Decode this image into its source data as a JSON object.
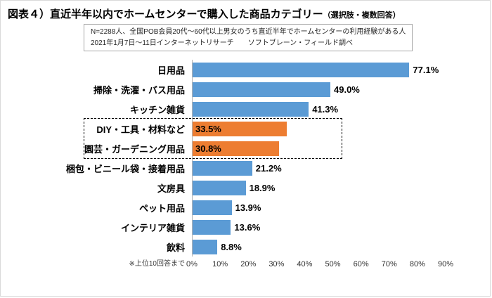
{
  "title": {
    "main": "図表４）直近半年以内でホームセンターで購入した商品カテゴリー",
    "suffix": "（選択肢・複数回答）"
  },
  "note": {
    "line1": "N=2288人、全国POB会員20代～60代以上男女のうち直近半年でホームセンターの利用経験がある人",
    "line2": "2021年1月7日～11日インターネットリサーチ　　ソフトブレーン・フィールド調べ"
  },
  "footnote": "※上位10回答まで",
  "colors": {
    "bar": "#5b9bd5",
    "highlight": "#ed7d31"
  },
  "chart_data": {
    "type": "bar",
    "orientation": "horizontal",
    "title": "直近半年以内でホームセンターで購入した商品カテゴリー（選択肢・複数回答）",
    "xlim": [
      0,
      90
    ],
    "x_ticks": [
      "0%",
      "10%",
      "20%",
      "30%",
      "40%",
      "50%",
      "60%",
      "70%",
      "80%",
      "90%"
    ],
    "grid": false,
    "legend": false,
    "items": [
      {
        "label": "日用品",
        "value": 77.1,
        "display": "77.1%",
        "highlight": false
      },
      {
        "label": "掃除・洗濯・バス用品",
        "value": 49.0,
        "display": "49.0%",
        "highlight": false
      },
      {
        "label": "キッチン雑貨",
        "value": 41.3,
        "display": "41.3%",
        "highlight": false
      },
      {
        "label": "DIY・工具・材料など",
        "value": 33.5,
        "display": "33.5%",
        "highlight": true
      },
      {
        "label": "園芸・ガーデニング用品",
        "value": 30.8,
        "display": "30.8%",
        "highlight": true
      },
      {
        "label": "梱包・ビニール袋・接着用品",
        "value": 21.2,
        "display": "21.2%",
        "highlight": false
      },
      {
        "label": "文房具",
        "value": 18.9,
        "display": "18.9%",
        "highlight": false
      },
      {
        "label": "ペット用品",
        "value": 13.9,
        "display": "13.9%",
        "highlight": false
      },
      {
        "label": "インテリア雑貨",
        "value": 13.6,
        "display": "13.6%",
        "highlight": false
      },
      {
        "label": "飲料",
        "value": 8.8,
        "display": "8.8%",
        "highlight": false
      }
    ]
  }
}
